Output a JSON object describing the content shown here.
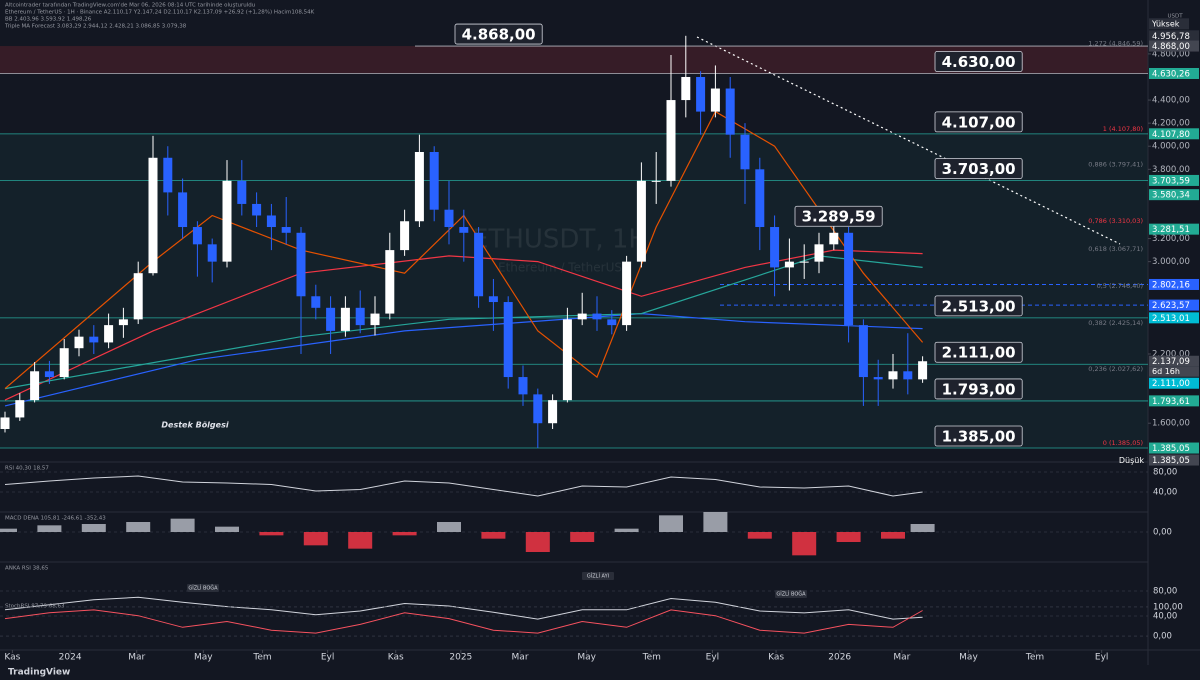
{
  "header": {
    "credit": "Altcointrader tarafından TradingView.com'de Mar 06, 2026 08:14 UTC tarihinde oluşturuldu",
    "symbol_line": "Ethereum / TetherUS · 1H · Binance  A2.110,17 Y2.147,24 D2.110,17 K2.137,09 +26,92 (+1,28%) Hacim108,54K",
    "indicator_lines": [
      "BB 2.403,96 3.593,92 1.498,26",
      "Triple MA Forecast 3.083,29 2.944,12 2.428,21 3.086,85 3.079,38"
    ]
  },
  "currency": "USDT",
  "brand": "TradingView",
  "chart_data": [
    {
      "type": "candlestick",
      "title": "ETHUSDT, 1H",
      "subtitle": "Ethereum / TetherUS",
      "x": [
        0,
        1,
        2,
        3,
        4,
        5,
        6,
        7,
        8,
        9,
        10,
        11,
        12,
        13,
        14,
        15,
        16,
        17,
        18,
        19,
        20,
        21,
        22,
        23,
        24,
        25,
        26,
        27,
        28,
        29,
        30,
        31,
        32,
        33,
        34,
        35,
        36,
        37,
        38,
        39,
        40,
        41,
        42,
        43,
        44,
        45,
        46,
        47,
        48,
        49,
        50,
        51,
        52,
        53,
        54,
        55,
        56,
        57,
        58,
        59,
        60,
        61,
        62
      ],
      "open": [
        1550,
        1650,
        1800,
        2050,
        2000,
        2250,
        2350,
        2300,
        2450,
        2500,
        2900,
        3900,
        3600,
        3300,
        3150,
        3000,
        3700,
        3500,
        3400,
        3300,
        3250,
        2700,
        2600,
        2400,
        2600,
        2450,
        2550,
        3100,
        3350,
        3950,
        3450,
        3300,
        3250,
        2700,
        2650,
        2000,
        1850,
        1600,
        1800,
        2500,
        2550,
        2500,
        2450,
        3000,
        3700,
        3700,
        4400,
        4600,
        4300,
        4500,
        4100,
        3800,
        3300,
        2950,
        3000,
        3000,
        3150,
        3250,
        2450,
        2000,
        1980,
        2050,
        1980
      ],
      "high": [
        1700,
        1860,
        2130,
        2140,
        2330,
        2410,
        2450,
        2550,
        2600,
        3000,
        4090,
        4000,
        3720,
        3350,
        3200,
        3880,
        3880,
        3600,
        3500,
        3560,
        3300,
        2800,
        2700,
        2700,
        2750,
        2700,
        3250,
        3450,
        4100,
        4000,
        3700,
        3450,
        3300,
        2850,
        2700,
        2100,
        1900,
        1850,
        2600,
        2730,
        2700,
        2580,
        3050,
        3860,
        3950,
        4790,
        4956.78,
        4650,
        4700,
        4600,
        4200,
        3900,
        3400,
        3200,
        3150,
        3250,
        3400,
        3300,
        2500,
        2150,
        2200,
        2380,
        2180
      ],
      "low": [
        1520,
        1620,
        1780,
        1940,
        1980,
        2180,
        2200,
        2250,
        2340,
        2460,
        2880,
        3400,
        3200,
        2870,
        2820,
        2950,
        3400,
        3300,
        3100,
        3150,
        2200,
        2500,
        2200,
        2350,
        2380,
        2360,
        2500,
        3050,
        3300,
        3350,
        3150,
        3000,
        2600,
        2400,
        1900,
        1750,
        1385.05,
        1550,
        1780,
        2450,
        2400,
        2370,
        2400,
        2950,
        3500,
        3650,
        4250,
        4100,
        4250,
        3900,
        3500,
        3100,
        2700,
        2750,
        2850,
        2900,
        3100,
        2300,
        1750,
        1750,
        1900,
        1850,
        1950
      ],
      "close": [
        1650,
        1800,
        2050,
        2000,
        2250,
        2350,
        2300,
        2450,
        2500,
        2900,
        3900,
        3600,
        3300,
        3150,
        3000,
        3700,
        3500,
        3400,
        3300,
        3250,
        2700,
        2600,
        2400,
        2600,
        2450,
        2550,
        3100,
        3350,
        3950,
        3450,
        3300,
        3250,
        2700,
        2650,
        2000,
        1850,
        1600,
        1800,
        2500,
        2550,
        2500,
        2450,
        3000,
        3700,
        3700,
        4400,
        4600,
        4300,
        4500,
        4100,
        3800,
        3300,
        2950,
        3000,
        3000,
        3150,
        3250,
        2450,
        2000,
        1980,
        2050,
        1980,
        2137.09
      ],
      "up_color": "#ffffff",
      "down_color": "#2962ff",
      "xlim": [
        -0.338,
        77.23
      ],
      "xticks": [
        {
          "value": 0.5,
          "label": "Kas"
        },
        {
          "value": 4.4,
          "label": "2024"
        },
        {
          "value": 8.9,
          "label": "Mar"
        },
        {
          "value": 13.4,
          "label": "May"
        },
        {
          "value": 17.4,
          "label": "Tem"
        },
        {
          "value": 21.8,
          "label": "Eyl"
        },
        {
          "value": 26.4,
          "label": "Kas"
        },
        {
          "value": 30.8,
          "label": "2025"
        },
        {
          "value": 34.8,
          "label": "Mar"
        },
        {
          "value": 39.3,
          "label": "May"
        },
        {
          "value": 43.7,
          "label": "Tem"
        },
        {
          "value": 47.8,
          "label": "Eyl"
        },
        {
          "value": 52.1,
          "label": "Kas"
        },
        {
          "value": 56.4,
          "label": "2026"
        },
        {
          "value": 60.6,
          "label": "Mar"
        },
        {
          "value": 65.1,
          "label": "May"
        },
        {
          "value": 69.6,
          "label": "Tem"
        },
        {
          "value": 74.1,
          "label": "Eyl"
        }
      ],
      "ylim": [
        1264,
        5267
      ],
      "yticks": [
        {
          "value": 4800,
          "label": "4.800,00"
        },
        {
          "value": 4400,
          "label": "4.400,00"
        },
        {
          "value": 4200,
          "label": "4.200,00"
        },
        {
          "value": 4000,
          "label": "4.000,00"
        },
        {
          "value": 3800,
          "label": "3.800,00"
        },
        {
          "value": 3200,
          "label": "3.200,00"
        },
        {
          "value": 3000,
          "label": "3.000,00"
        },
        {
          "value": 2200,
          "label": "2.200,00"
        },
        {
          "value": 1600,
          "label": "1.600,00"
        }
      ],
      "grid": false,
      "overlays": [
        {
          "color": "#f23645",
          "x": [
            0,
            10,
            20,
            30,
            36,
            43,
            50,
            56,
            62
          ],
          "values": [
            1800,
            2400,
            2900,
            3050,
            3000,
            2700,
            2950,
            3100,
            3070
          ]
        },
        {
          "color": "#2962ff",
          "x": [
            0,
            13,
            27,
            43,
            50,
            62
          ],
          "values": [
            1750,
            2150,
            2400,
            2550,
            2480,
            2420
          ]
        },
        {
          "color": "#26a69a",
          "x": [
            0,
            20,
            30,
            43,
            55,
            62
          ],
          "values": [
            1900,
            2350,
            2500,
            2550,
            3050,
            2950
          ]
        },
        {
          "color": "#e65100",
          "x": [
            0,
            10,
            14,
            20,
            27,
            31,
            36,
            40,
            44,
            48,
            52,
            58,
            62
          ],
          "values": [
            1900,
            3000,
            3400,
            3100,
            2900,
            3400,
            2400,
            2000,
            3300,
            4300,
            4000,
            2900,
            2300
          ]
        }
      ],
      "annotations": [
        {
          "value": 4868,
          "label": "4.868,00"
        },
        {
          "value": 4630,
          "label": "4.630,00"
        },
        {
          "value": 4107,
          "label": "4.107,00"
        },
        {
          "value": 3703,
          "label": "3.703,00"
        },
        {
          "value": 3289.59,
          "label": "3.289,59"
        },
        {
          "value": 2513,
          "label": "2.513,00"
        },
        {
          "value": 2111,
          "label": "2.111,00"
        },
        {
          "value": 1793,
          "label": "1.793,00"
        },
        {
          "value": 1385,
          "label": "1.385,00"
        }
      ],
      "zone_label": "Destek Bölgesi",
      "price_labels": [
        {
          "value": 4956.78,
          "label": "4.956,78",
          "color": "#2a2e39"
        },
        {
          "value": 4868,
          "label": "4.868,00",
          "color": "#434651"
        },
        {
          "value": 4630.26,
          "label": "4.630,26",
          "color": "#22ab94"
        },
        {
          "value": 4107.8,
          "label": "4.107,80",
          "color": "#22ab94"
        },
        {
          "value": 3703.59,
          "label": "3.703,59",
          "color": "#22ab94"
        },
        {
          "value": 3580.34,
          "label": "3.580,34",
          "color": "#22ab94"
        },
        {
          "value": 3281.51,
          "label": "3.281,51",
          "color": "#22ab94"
        },
        {
          "value": 2802.16,
          "label": "2.802,16",
          "color": "#2962ff",
          "line": "dashed"
        },
        {
          "value": 2623.57,
          "label": "2.623,57",
          "color": "#2962ff",
          "line": "dashed"
        },
        {
          "value": 2513.01,
          "label": "2.513,01",
          "color": "#00bcd4"
        },
        {
          "value": 2137.09,
          "label": "2.137,09",
          "color": "#434651"
        },
        {
          "value": 2111,
          "label": "2.111,00",
          "color": "#00bcd4"
        },
        {
          "value": 1793.61,
          "label": "1.793,61",
          "color": "#22ab94"
        },
        {
          "value": 1385.05,
          "label": "1.385,05",
          "color": "#22ab94"
        },
        {
          "value": 1385.05,
          "label": "1.385,05",
          "color": "#434651"
        }
      ],
      "high_label": "Yüksek",
      "low_label": "Düşük",
      "countdown": "6d 16h",
      "fib_levels": [
        {
          "value": 4846.59,
          "label": "1,272 (4.846,59)",
          "color": "#787b86"
        },
        {
          "value": 4107.8,
          "label": "1 (4.107,80)",
          "color": "#f23645"
        },
        {
          "value": 3797.41,
          "label": "0,886 (3.797,41)",
          "color": "#787b86"
        },
        {
          "value": 3310.03,
          "label": "0,786 (3.310,03)",
          "color": "#f23645"
        },
        {
          "value": 3067.71,
          "label": "0,618 (3.067,71)",
          "color": "#787b86"
        },
        {
          "value": 2746.4,
          "label": "0,5 (2.746,40)",
          "color": "#787b86"
        },
        {
          "value": 2425.14,
          "label": "0,382 (2.425,14)",
          "color": "#787b86"
        },
        {
          "value": 2027.62,
          "label": "0,236 (2.027,62)",
          "color": "#787b86"
        },
        {
          "value": 1385.05,
          "label": "0 (1.385,05)",
          "color": "#f23645"
        }
      ]
    },
    {
      "type": "line",
      "title": "RSI 40,30 18,57",
      "color": "#d1d4dc",
      "x": [
        0,
        3,
        6,
        9,
        12,
        15,
        18,
        21,
        24,
        27,
        30,
        33,
        36,
        39,
        42,
        45,
        48,
        51,
        54,
        57,
        60,
        62
      ],
      "values": [
        55,
        62,
        68,
        72,
        60,
        58,
        55,
        42,
        45,
        62,
        58,
        45,
        32,
        52,
        50,
        70,
        65,
        50,
        48,
        52,
        32,
        40
      ],
      "ylim": [
        0,
        100
      ],
      "yticks": [
        {
          "value": 80,
          "label": "80,00"
        },
        {
          "value": 40,
          "label": "40,00"
        }
      ]
    },
    {
      "type": "bar",
      "title": "MACD DENA 105,81 -246,61 -352,43",
      "up_color": "#b2b5be",
      "down_color": "#f23645",
      "x": [
        0,
        3,
        6,
        9,
        12,
        15,
        18,
        21,
        24,
        27,
        30,
        33,
        36,
        39,
        42,
        45,
        48,
        51,
        54,
        57,
        60,
        62
      ],
      "values": [
        50,
        100,
        120,
        150,
        200,
        80,
        -50,
        -200,
        -250,
        -50,
        150,
        -100,
        -300,
        -150,
        50,
        250,
        300,
        -100,
        -350,
        -150,
        -100,
        120
      ],
      "ylim": [
        -450,
        300
      ],
      "yticks": [
        {
          "value": 0,
          "label": "0,00"
        }
      ]
    },
    {
      "type": "line",
      "title": "ANKA RSI 38,65",
      "color": "#d1d4dc",
      "x": [
        0,
        3,
        6,
        9,
        12,
        15,
        18,
        21,
        24,
        27,
        30,
        33,
        36,
        39,
        42,
        45,
        48,
        51,
        54,
        57,
        60,
        62
      ],
      "values": [
        50,
        58,
        66,
        70,
        62,
        55,
        50,
        42,
        48,
        60,
        56,
        46,
        35,
        50,
        50,
        68,
        62,
        48,
        45,
        50,
        35,
        38
      ],
      "ylim": [
        25.6,
        126.4
      ],
      "yticks": [
        {
          "value": 80,
          "label": "80,00"
        },
        {
          "value": 40,
          "label": "40,00"
        }
      ],
      "annotations": [
        "GİZLİ BOĞA",
        "GİZLİ AYI",
        "GİZLİ BOĞA"
      ]
    },
    {
      "type": "line",
      "title": "StochRSI 87,79 68,63",
      "color": "#f7525f",
      "x": [
        0,
        3,
        6,
        9,
        12,
        15,
        18,
        21,
        24,
        27,
        30,
        33,
        36,
        39,
        42,
        45,
        48,
        51,
        54,
        57,
        60,
        62
      ],
      "values": [
        60,
        80,
        90,
        70,
        30,
        50,
        20,
        10,
        40,
        80,
        60,
        20,
        10,
        50,
        30,
        90,
        70,
        20,
        10,
        40,
        30,
        88
      ],
      "ylim": [
        -48,
        124
      ],
      "yticks": [
        {
          "value": 100,
          "label": "100,00"
        },
        {
          "value": 0,
          "label": "0,00"
        }
      ]
    }
  ]
}
